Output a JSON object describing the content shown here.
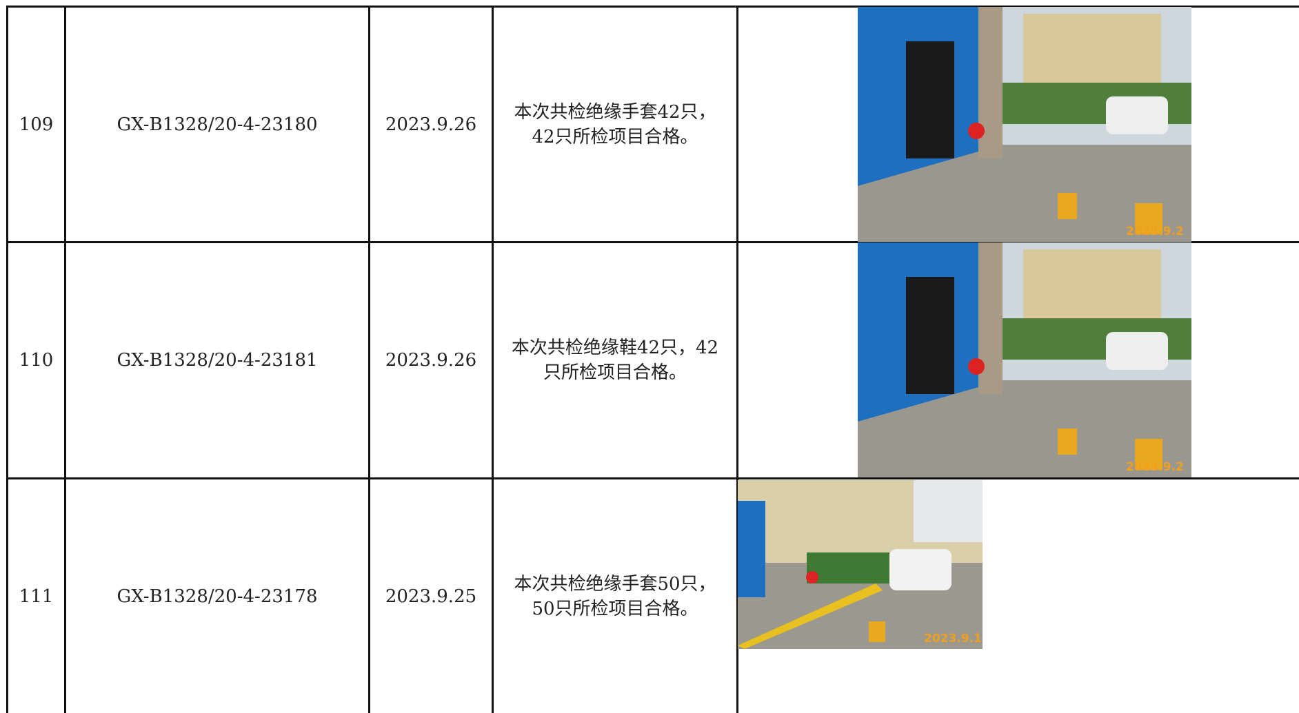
{
  "table": {
    "rows": [
      {
        "no": "109",
        "code": "GX-B1328/20-4-23180",
        "date": "2023.9.26",
        "result": "本次共检绝缘手套42只，42只所检项目合格。",
        "photo_stamp": "2023.9.2"
      },
      {
        "no": "110",
        "code": "GX-B1328/20-4-23181",
        "date": "2023.9.26",
        "result": "本次共检绝缘鞋42只，42只所检项目合格。",
        "photo_stamp": "2023.9.2"
      },
      {
        "no": "111",
        "code": "GX-B1328/20-4-23178",
        "date": "2023.9.25",
        "result": "本次共检绝缘手套50只，50只所检项目合格。",
        "photo_stamp": "2023.9.1"
      }
    ]
  }
}
